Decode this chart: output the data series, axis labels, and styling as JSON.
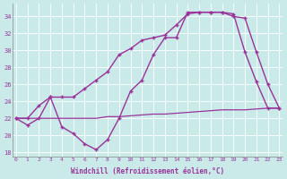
{
  "xlabel": "Windchill (Refroidissement éolien,°C)",
  "x_ticks": [
    0,
    1,
    2,
    3,
    4,
    5,
    6,
    7,
    8,
    9,
    10,
    11,
    12,
    13,
    14,
    15,
    16,
    17,
    18,
    19,
    20,
    21,
    22,
    23
  ],
  "ylim": [
    17.5,
    35.5
  ],
  "xlim": [
    -0.3,
    23.3
  ],
  "yticks": [
    18,
    20,
    22,
    24,
    26,
    28,
    30,
    32,
    34
  ],
  "bg_color": "#caeaea",
  "line_color": "#993399",
  "line1_flat": [
    22.0,
    22.0,
    22.0,
    22.0,
    22.0,
    22.0,
    22.0,
    22.0,
    22.2,
    22.2,
    22.3,
    22.4,
    22.5,
    22.5,
    22.6,
    22.7,
    22.8,
    22.9,
    23.0,
    23.0,
    23.0,
    23.1,
    23.2,
    23.2
  ],
  "line2_wavy": [
    22.0,
    21.2,
    22.0,
    24.5,
    21.0,
    20.2,
    19.0,
    18.3,
    19.5,
    22.0,
    25.2,
    26.5,
    29.5,
    31.5,
    31.5,
    34.5,
    34.5,
    34.5,
    34.5,
    34.0,
    33.8,
    29.8,
    26.0,
    23.2
  ],
  "line3_upper": [
    22.0,
    22.0,
    23.5,
    24.5,
    24.5,
    24.5,
    25.5,
    26.5,
    27.5,
    29.5,
    30.2,
    31.2,
    31.5,
    31.8,
    33.0,
    34.3,
    34.5,
    34.5,
    34.5,
    34.3,
    29.8,
    26.3,
    23.2,
    23.2
  ]
}
